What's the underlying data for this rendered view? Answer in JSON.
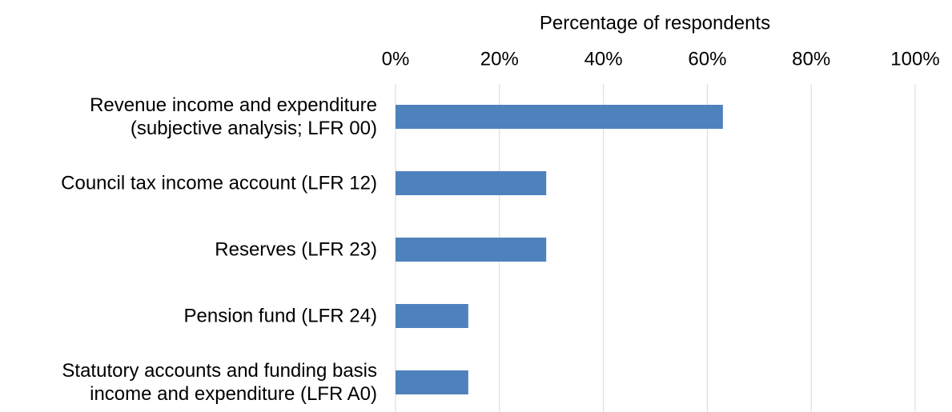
{
  "chart_data": {
    "type": "bar",
    "orientation": "horizontal",
    "x_label": "Percentage of respondents",
    "categories": [
      "Revenue income and expenditure\n(subjective analysis; LFR 00)",
      "Council tax income account (LFR 12)",
      "Reserves (LFR 23)",
      "Pension fund (LFR 24)",
      "Statutory accounts and funding basis\nincome and expenditure (LFR A0)"
    ],
    "values": [
      63,
      29,
      29,
      14,
      14
    ],
    "color": "#4f81bd",
    "xlim": [
      0,
      100
    ],
    "xticks": [
      {
        "value": 0,
        "label": "0%"
      },
      {
        "value": 20,
        "label": "20%"
      },
      {
        "value": 40,
        "label": "40%"
      },
      {
        "value": 60,
        "label": "60%"
      },
      {
        "value": 80,
        "label": "80%"
      },
      {
        "value": 100,
        "label": "100%"
      }
    ],
    "grid": true
  }
}
